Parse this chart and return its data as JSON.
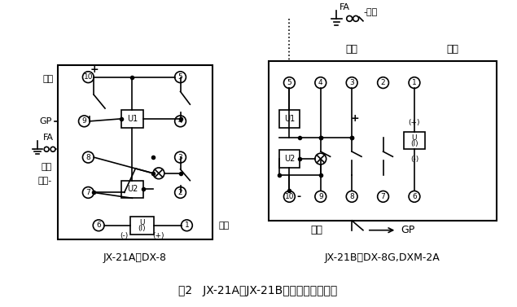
{
  "title": "图2   JX-21A、JX-21B接线图（正视图）",
  "label_A": "JX-21A代DX-8",
  "label_B": "JX-21B代DX-8G,DXM-2A",
  "bg_color": "#ffffff",
  "line_color": "#000000"
}
